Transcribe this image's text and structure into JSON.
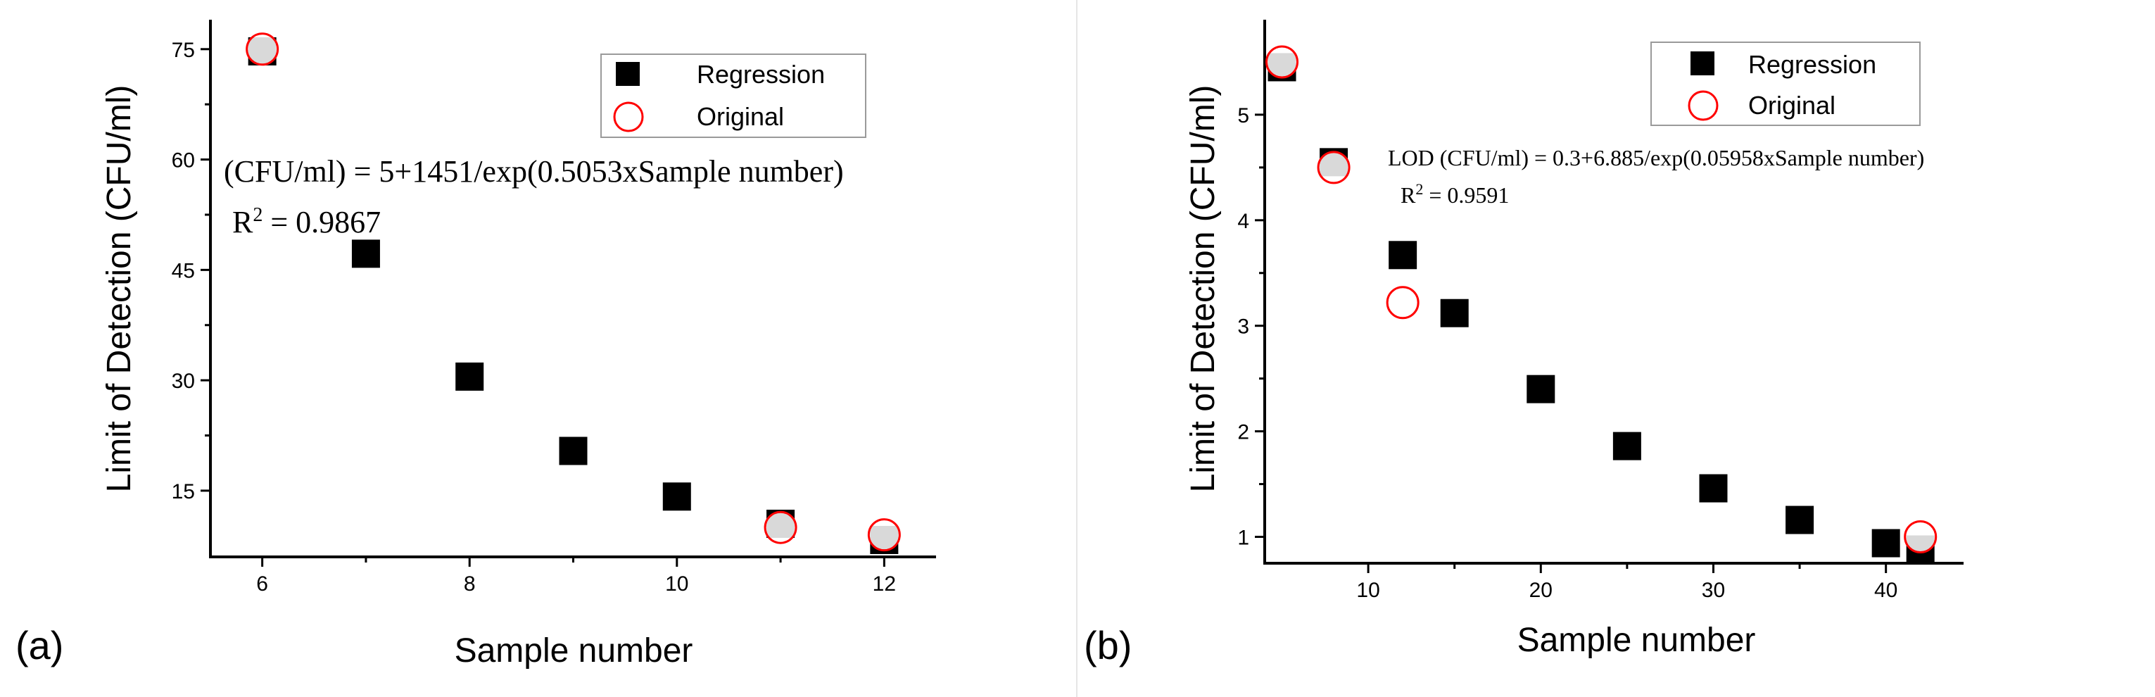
{
  "chart_data": [
    {
      "type": "scatter",
      "panel_label": "(a)",
      "xlabel": "Sample number",
      "ylabel": "Limit of Detection (CFU/ml)",
      "xlim": [
        5.5,
        12.5
      ],
      "ylim": [
        6,
        79
      ],
      "xticks": [
        6,
        8,
        10,
        12
      ],
      "xtick_labels": [
        "6",
        "8",
        "10",
        "12"
      ],
      "yticks": [
        15,
        30,
        45,
        60,
        75
      ],
      "ytick_labels": [
        "15",
        "30",
        "45",
        "60",
        "75"
      ],
      "legend": {
        "regression": "Regression",
        "original": "Original",
        "location": "top-right"
      },
      "equation": "(CFU/ml) = 5+1451/exp(0.5053xSample number)",
      "r2_prefix": "R",
      "r2_sup": "2",
      "r2_value": " = 0.9867",
      "series": [
        {
          "name": "Regression",
          "marker": "square",
          "color": "#000000",
          "x": [
            6,
            7,
            8,
            9,
            10,
            11,
            12
          ],
          "y": [
            74.7,
            47.2,
            30.5,
            20.4,
            14.2,
            10.5,
            8.3
          ]
        },
        {
          "name": "Original",
          "marker": "open-circle",
          "color": "#ff0000",
          "x": [
            6,
            11,
            12
          ],
          "y": [
            75,
            10,
            9
          ]
        }
      ]
    },
    {
      "type": "scatter",
      "panel_label": "(b)",
      "xlabel": "Sample number",
      "ylabel": "Limit of Detection (CFU/ml)",
      "xlim": [
        4,
        44.5
      ],
      "ylim": [
        0.75,
        5.9
      ],
      "xticks": [
        10,
        20,
        30,
        40
      ],
      "xtick_labels": [
        "10",
        "20",
        "30",
        "40"
      ],
      "yticks": [
        1,
        2,
        3,
        4,
        5
      ],
      "ytick_labels": [
        "1",
        "2",
        "3",
        "4",
        "5"
      ],
      "legend": {
        "regression": "Regression",
        "original": "Original",
        "location": "top-right"
      },
      "equation": "LOD (CFU/ml) = 0.3+6.885/exp(0.05958xSample number)",
      "r2_prefix": "R",
      "r2_sup": "2",
      "r2_value": " = 0.9591",
      "series": [
        {
          "name": "Regression",
          "marker": "square",
          "color": "#000000",
          "x": [
            5,
            8,
            12,
            15,
            20,
            25,
            30,
            35,
            40,
            42
          ],
          "y": [
            5.45,
            4.55,
            3.67,
            3.12,
            2.4,
            1.86,
            1.46,
            1.16,
            0.94,
            0.88
          ]
        },
        {
          "name": "Original",
          "marker": "open-circle",
          "color": "#ff0000",
          "x": [
            5,
            8,
            12,
            42
          ],
          "y": [
            5.5,
            4.5,
            3.22,
            1.0
          ]
        }
      ]
    }
  ]
}
